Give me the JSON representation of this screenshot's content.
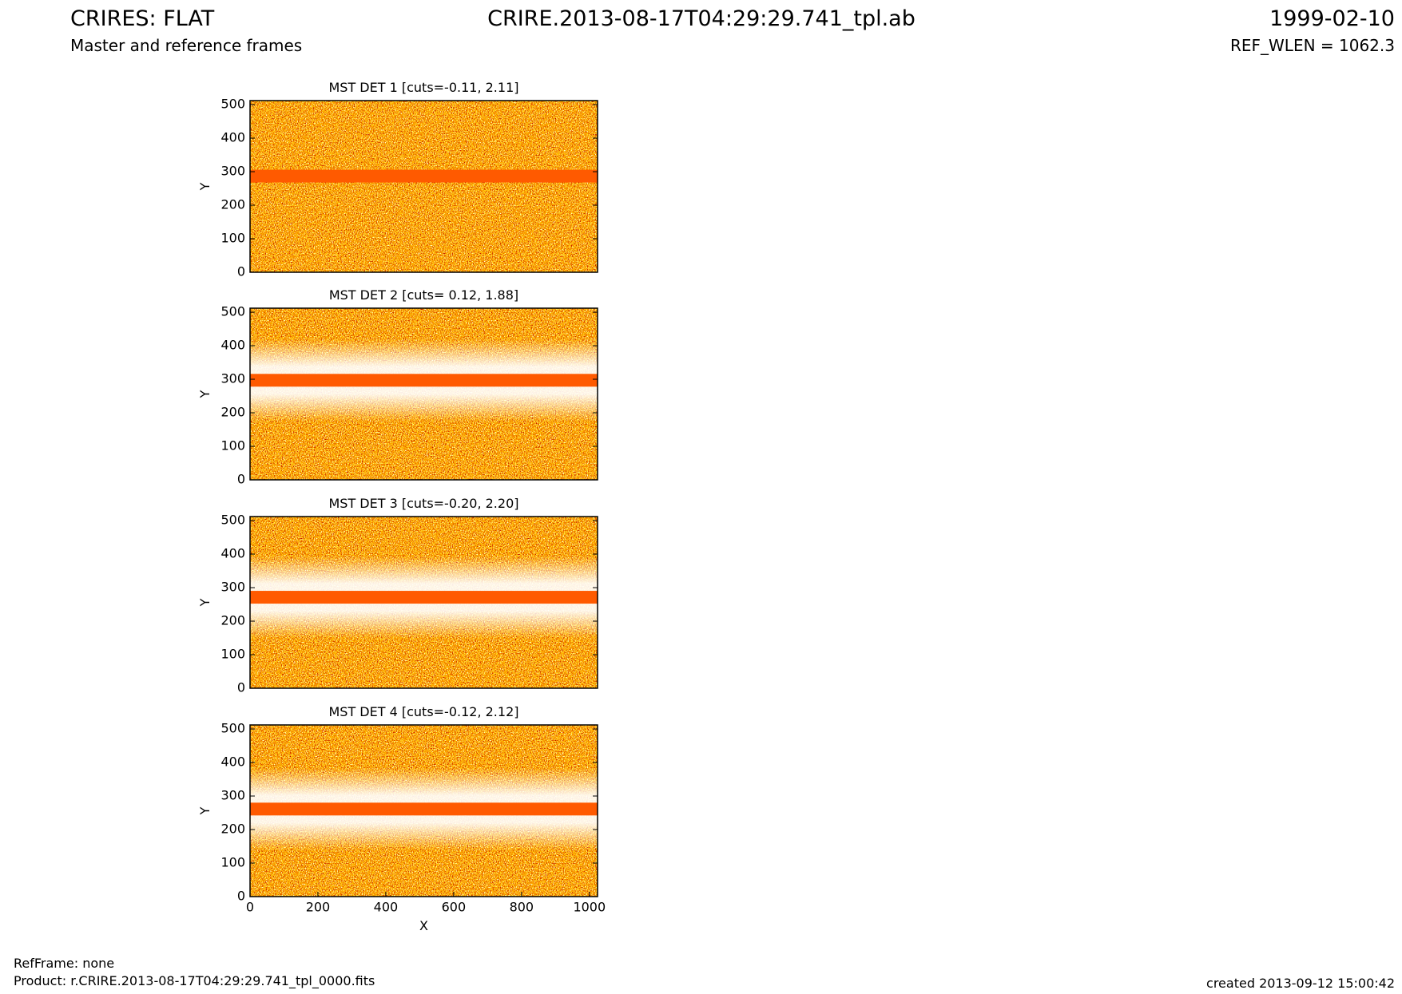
{
  "header": {
    "title": "CRIRES: FLAT",
    "subtitle": "Master and reference frames",
    "center": "CRIRE.2013-08-17T04:29:29.741_tpl.ab",
    "date": "1999-02-10",
    "ref_wlen": "REF_WLEN = 1062.3"
  },
  "footer": {
    "refframe": "RefFrame: none",
    "product": "Product: r.CRIRE.2013-08-17T04:29:29.741_tpl_0000.fits",
    "created": "created 2013-09-12 15:00:42"
  },
  "chart_data": [
    {
      "type": "image",
      "title": "MST DET 1 [cuts=-0.11, 2.11]",
      "ylabel": "Y",
      "xlim": [
        0,
        1024
      ],
      "ylim": [
        0,
        512
      ],
      "yticks": [
        0,
        100,
        200,
        300,
        400,
        500
      ]
    },
    {
      "type": "image",
      "title": "MST DET 2 [cuts= 0.12, 1.88]",
      "ylabel": "Y",
      "xlim": [
        0,
        1024
      ],
      "ylim": [
        0,
        512
      ],
      "yticks": [
        0,
        100,
        200,
        300,
        400,
        500
      ]
    },
    {
      "type": "image",
      "title": "MST DET 3 [cuts=-0.20, 2.20]",
      "ylabel": "Y",
      "xlim": [
        0,
        1024
      ],
      "ylim": [
        0,
        512
      ],
      "yticks": [
        0,
        100,
        200,
        300,
        400,
        500
      ]
    },
    {
      "type": "image",
      "title": "MST DET 4 [cuts=-0.12, 2.12]",
      "ylabel": "Y",
      "xlabel": "X",
      "xlim": [
        0,
        1024
      ],
      "ylim": [
        0,
        512
      ],
      "yticks": [
        0,
        100,
        200,
        300,
        400,
        500
      ],
      "xticks": [
        0,
        200,
        400,
        600,
        800,
        1000
      ]
    }
  ]
}
